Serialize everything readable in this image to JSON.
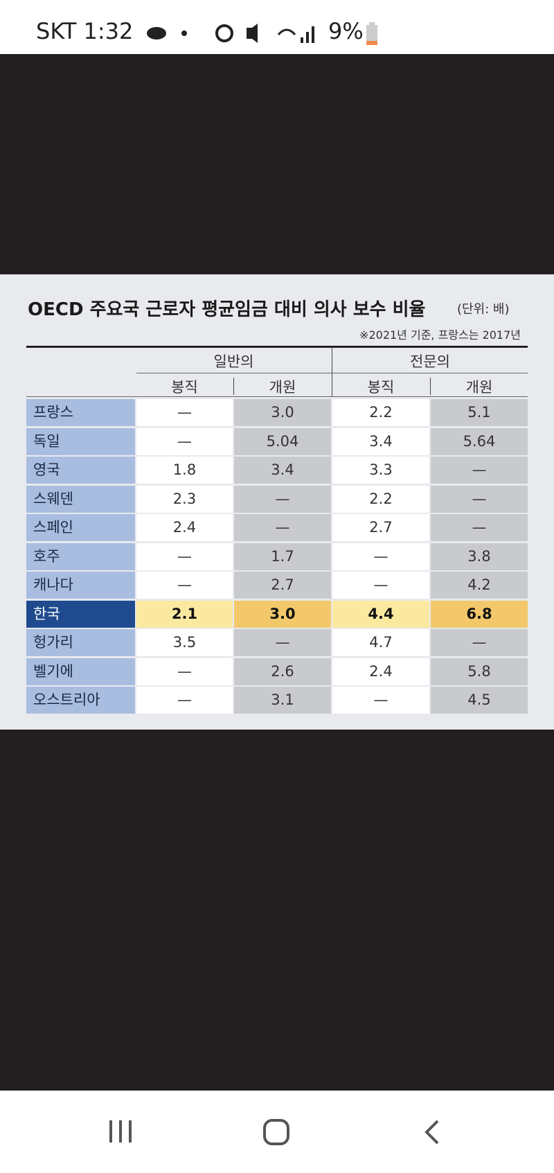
{
  "status_bar": {
    "carrier_time": "SKT 1:32",
    "battery": "9%"
  },
  "table": {
    "title": "OECD 주요국 근로자 평균임금 대비 의사 보수 비율",
    "unit": "(단위: 배)",
    "note": "※2021년 기준, 프랑스는 2017년",
    "groups": [
      "일반의",
      "전문의"
    ],
    "subheaders": [
      "봉직",
      "개원",
      "봉직",
      "개원"
    ],
    "rows": [
      [
        "프랑스",
        "—",
        "3.0",
        "2.2",
        "5.1"
      ],
      [
        "독일",
        "—",
        "5.04",
        "3.4",
        "5.64"
      ],
      [
        "영국",
        "1.8",
        "3.4",
        "3.3",
        "—"
      ],
      [
        "스웨덴",
        "2.3",
        "—",
        "2.2",
        "—"
      ],
      [
        "스페인",
        "2.4",
        "—",
        "2.7",
        "—"
      ],
      [
        "호주",
        "—",
        "1.7",
        "—",
        "3.8"
      ],
      [
        "캐나다",
        "—",
        "2.7",
        "—",
        "4.2"
      ],
      [
        "한국",
        "2.1",
        "3.0",
        "4.4",
        "6.8"
      ],
      [
        "헝가리",
        "3.5",
        "—",
        "4.7",
        "—"
      ],
      [
        "벨기에",
        "—",
        "2.6",
        "2.4",
        "5.8"
      ],
      [
        "오스트리아",
        "—",
        "3.1",
        "—",
        "4.5"
      ]
    ]
  }
}
